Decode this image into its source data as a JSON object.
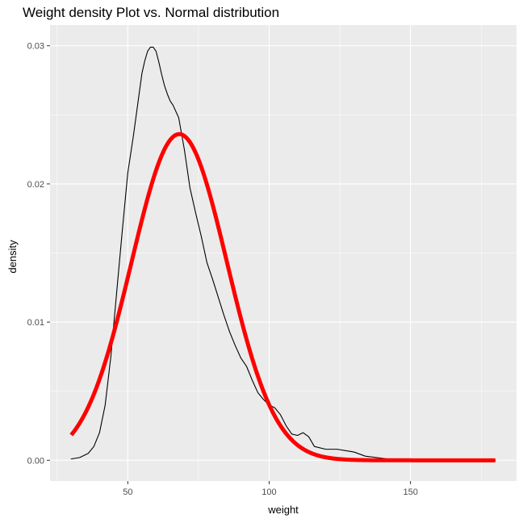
{
  "chart_data": {
    "type": "line",
    "title": "Weight density Plot vs. Normal distribution",
    "xlabel": "weight",
    "ylabel": "density",
    "xlim": [
      22.5,
      187.5
    ],
    "ylim": [
      -0.0015,
      0.0315
    ],
    "x_ticks": [
      50,
      100,
      150
    ],
    "x_tick_labels": [
      "50",
      "100",
      "150"
    ],
    "y_ticks": [
      0.0,
      0.01,
      0.02,
      0.03
    ],
    "y_tick_labels": [
      "0.00",
      "0.01",
      "0.02",
      "0.03"
    ],
    "grid": true,
    "panel_background": "#EBEBEB",
    "series": [
      {
        "kind": "empirical-density",
        "color": "#000000",
        "x": [
          30,
          33,
          36,
          38,
          40,
          42,
          44,
          46,
          48,
          50,
          52,
          54,
          55,
          56,
          57,
          58,
          59,
          60,
          61,
          62,
          63,
          64,
          65,
          66,
          68,
          70,
          72,
          74,
          76,
          78,
          80,
          82,
          84,
          86,
          88,
          90,
          92,
          94,
          96,
          98,
          100,
          102,
          104,
          106,
          108,
          110,
          112,
          114,
          116,
          120,
          124,
          127,
          130,
          134,
          138,
          142,
          146,
          150,
          160,
          170,
          180
        ],
        "y": [
          0.0001,
          0.0002,
          0.0005,
          0.001,
          0.002,
          0.004,
          0.0075,
          0.012,
          0.0165,
          0.0208,
          0.0235,
          0.0265,
          0.028,
          0.0289,
          0.0296,
          0.0299,
          0.0299,
          0.0296,
          0.0288,
          0.0279,
          0.0271,
          0.0265,
          0.026,
          0.0257,
          0.0248,
          0.0225,
          0.0197,
          0.0179,
          0.0162,
          0.0143,
          0.0131,
          0.0118,
          0.0105,
          0.0093,
          0.0083,
          0.0074,
          0.0068,
          0.0058,
          0.0049,
          0.0044,
          0.004,
          0.0038,
          0.0033,
          0.0025,
          0.0019,
          0.0018,
          0.002,
          0.0017,
          0.001,
          0.0008,
          0.0008,
          0.0007,
          0.0006,
          0.0003,
          0.0002,
          0.0001,
          0.0001,
          0.0,
          0.0,
          0.0,
          0.0
        ]
      },
      {
        "kind": "normal-curve",
        "color": "#FF0000",
        "mean": 68.2,
        "sd": 16.9,
        "x_range": [
          30,
          180
        ]
      }
    ]
  }
}
